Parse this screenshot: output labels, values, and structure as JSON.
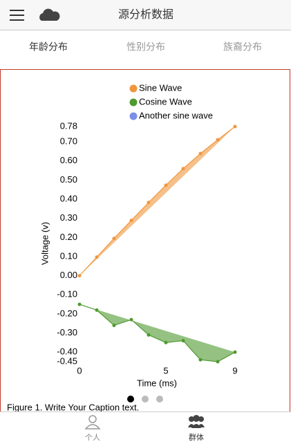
{
  "header": {
    "title": "源分析数据"
  },
  "tabs": [
    "年龄分布",
    "性别分布",
    "族裔分布"
  ],
  "chart_data": {
    "type": "line",
    "xlabel": "Time (ms)",
    "ylabel": "Voltage (v)",
    "x": [
      0,
      1,
      2,
      3,
      4,
      5,
      6,
      7,
      8,
      9
    ],
    "series": [
      {
        "name": "Sine Wave",
        "color": "#f0963c",
        "values": [
          0,
          0.097,
          0.195,
          0.289,
          0.383,
          0.473,
          0.56,
          0.639,
          0.711,
          0.78
        ]
      },
      {
        "name": "Cosine Wave",
        "color": "#4e9a2e",
        "values": [
          -0.15,
          -0.18,
          -0.26,
          -0.23,
          -0.31,
          -0.35,
          -0.34,
          -0.44,
          -0.45,
          -0.4
        ]
      },
      {
        "name": "Another sine wave",
        "color": "#7b8fe8"
      }
    ],
    "xlim": [
      0,
      9
    ],
    "xticks": [
      0,
      5,
      9
    ],
    "ylim": [
      -0.45,
      0.78
    ],
    "yticks": [
      -0.45,
      {
        "value": -0.4,
        "label": "-0.40"
      },
      {
        "value": -0.3,
        "label": "-0.30"
      },
      {
        "value": -0.2,
        "label": "-0.20"
      },
      {
        "value": -0.1,
        "label": "-0.10"
      },
      {
        "value": 0,
        "label": "0.00"
      },
      {
        "value": 0.1,
        "label": "0.10"
      },
      {
        "value": 0.2,
        "label": "0.20"
      },
      {
        "value": 0.3,
        "label": "0.30"
      },
      {
        "value": 0.4,
        "label": "0.40"
      },
      {
        "value": 0.5,
        "label": "0.50"
      },
      {
        "value": 0.6,
        "label": "0.60"
      },
      {
        "value": 0.7,
        "label": "0.70"
      },
      0.78
    ],
    "caption": "Figure 1. Write Your Caption text."
  },
  "nav": [
    "个人",
    "群体"
  ]
}
